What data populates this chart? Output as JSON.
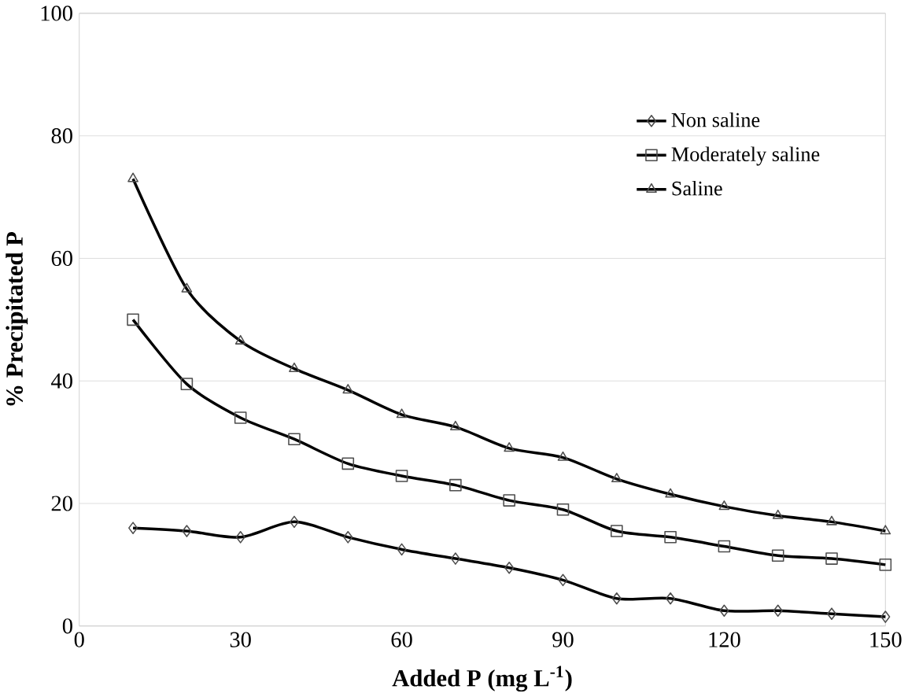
{
  "chart_data": {
    "type": "line",
    "xlabel": "Added P (mg L$^{-1}$)",
    "ylabel": "% Precipitated P",
    "x": [
      10,
      20,
      30,
      40,
      50,
      60,
      70,
      80,
      90,
      100,
      110,
      120,
      130,
      140,
      150
    ],
    "series": [
      {
        "name": "Non saline",
        "color": "#000000",
        "marker": "diamond",
        "values": [
          16,
          15.5,
          14.5,
          17,
          14.5,
          12.5,
          11,
          9.5,
          7.5,
          4.5,
          4.5,
          2.5,
          2.5,
          2,
          1.5
        ]
      },
      {
        "name": "Moderately saline",
        "color": "#000000",
        "marker": "square",
        "values": [
          50,
          39.5,
          34,
          30.5,
          26.5,
          24.5,
          23,
          20.5,
          19,
          15.5,
          14.5,
          13,
          11.5,
          11,
          10
        ]
      },
      {
        "name": "Saline",
        "color": "#000000",
        "marker": "triangle",
        "values": [
          73,
          55,
          46.5,
          42,
          38.5,
          34.5,
          32.5,
          29,
          27.5,
          24,
          21.5,
          19.5,
          18,
          17,
          15.5
        ]
      }
    ],
    "xlim": [
      0,
      150
    ],
    "ylim": [
      0,
      100
    ],
    "xticks": [
      0,
      30,
      60,
      90,
      120,
      150
    ],
    "yticks": [
      0,
      20,
      40,
      60,
      80,
      100
    ],
    "grid": "y",
    "legend": "top right",
    "line_style": "solid"
  }
}
